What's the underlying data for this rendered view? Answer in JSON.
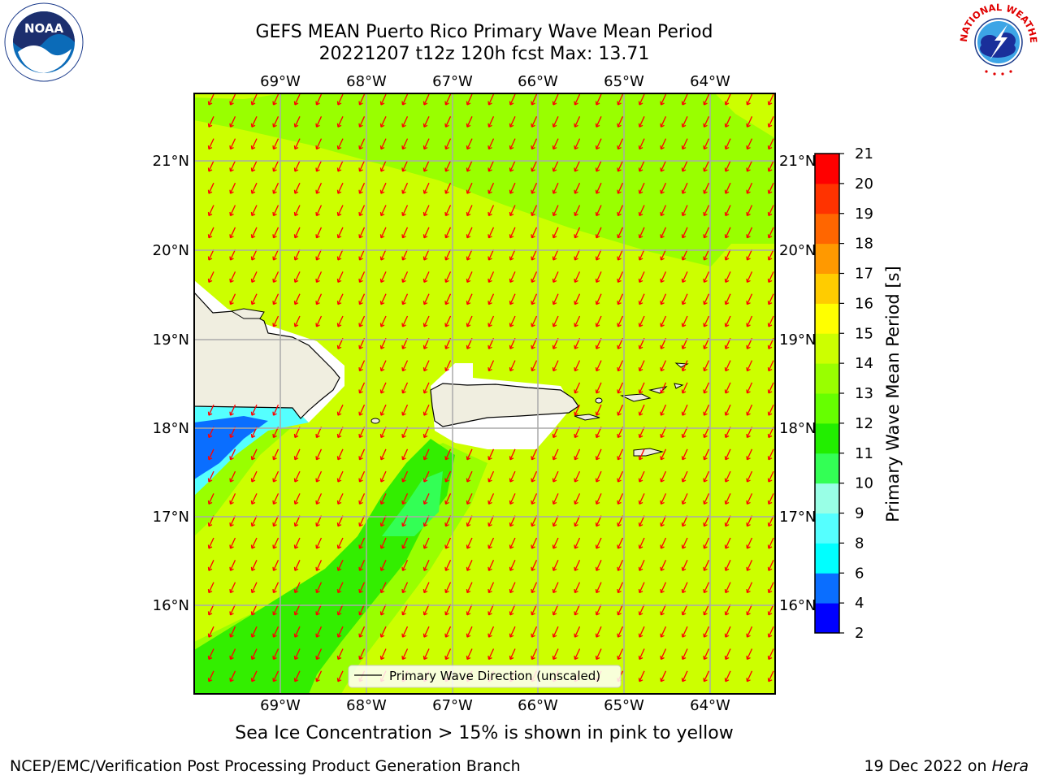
{
  "title_line1": "GEFS MEAN Puerto Rico Primary Wave Mean Period",
  "title_line2": "20221207 t12z 120h fcst   Max: 13.71",
  "subtitle": "Sea Ice Concentration > 15% is shown in pink to yellow",
  "footer_left": "NCEP/EMC/Verification Post Processing Product Generation Branch",
  "footer_right_date": "19 Dec 2022 on ",
  "footer_right_host": "Hera",
  "legend_label": "Primary Wave Direction (unscaled)",
  "colorbar": {
    "label": "Primary Wave Mean Period [s]",
    "ticks": [
      "21",
      "20",
      "19",
      "18",
      "17",
      "16",
      "15",
      "14",
      "13",
      "12",
      "11",
      "10",
      "9",
      "8",
      "6",
      "4",
      "2"
    ],
    "levels": [
      {
        "color": "#0000ff"
      },
      {
        "color": "#0a6eff"
      },
      {
        "color": "#00ffff"
      },
      {
        "color": "#55ffff"
      },
      {
        "color": "#99ffe6"
      },
      {
        "color": "#33ff55"
      },
      {
        "color": "#22ee00"
      },
      {
        "color": "#66ff00"
      },
      {
        "color": "#99ff00"
      },
      {
        "color": "#ccff00"
      },
      {
        "color": "#ffff00"
      },
      {
        "color": "#ffcc00"
      },
      {
        "color": "#ff9900"
      },
      {
        "color": "#ff6600"
      },
      {
        "color": "#ff3300"
      },
      {
        "color": "#ff0000"
      }
    ]
  },
  "axes": {
    "lon_labels": [
      "69°W",
      "68°W",
      "67°W",
      "66°W",
      "65°W",
      "64°W"
    ],
    "lat_labels": [
      "21°N",
      "20°N",
      "19°N",
      "18°N",
      "17°N",
      "16°N"
    ]
  },
  "colors": {
    "background_field": "#ccff00",
    "band_light_green": "#99ff00",
    "band_green": "#33ee00",
    "land": "#f0eee0",
    "arrow": "#ff0000"
  },
  "logos": {
    "noaa": "NOAA",
    "nws_arc": "NATIONAL WEATHER SERVICE"
  }
}
